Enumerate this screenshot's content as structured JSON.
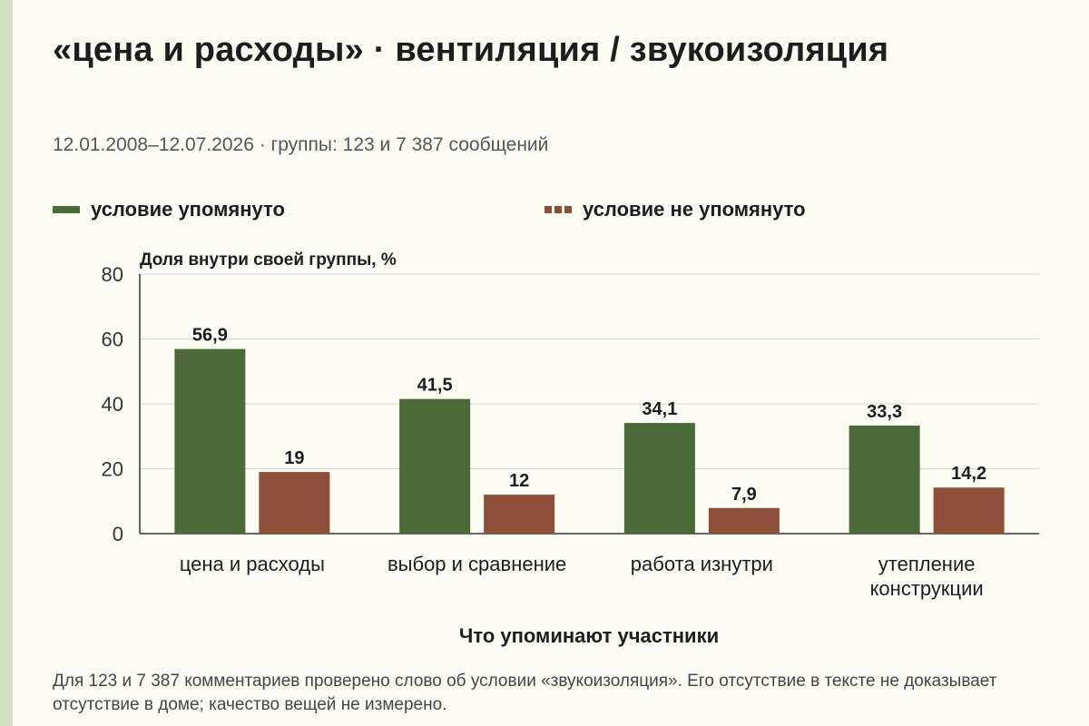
{
  "title": "«цена и расходы» · вентиляция / звукоизоляция",
  "subtitle": "12.01.2008–12.07.2026 · группы: 123 и 7 387 сообщений",
  "footnote": "Для 123 и 7 387 комментариев проверено слово об условии «звукоизоляция». Его отсутствие в тексте не доказывает отсутствие в доме; качество вещей не измерено.",
  "colors": {
    "mentioned": "#4a6a3a",
    "not_mentioned": "#8e4f3a",
    "grid": "#d6d6d6",
    "axis": "#333333"
  },
  "chart_data": {
    "type": "bar",
    "title": "«цена и расходы» · вентиляция / звукоизоляция",
    "ylabel": "Доля внутри своей группы, %",
    "xlabel": "Что упоминают участники",
    "ylim": [
      0,
      80
    ],
    "yticks": [
      0,
      20,
      40,
      60,
      80
    ],
    "grid": true,
    "legend_position": "top",
    "categories": [
      [
        "цена и расходы"
      ],
      [
        "выбор и сравнение"
      ],
      [
        "работа изнутри"
      ],
      [
        "утепление",
        "конструкции"
      ]
    ],
    "series": [
      {
        "name": "условие упомянуто",
        "values": [
          56.9,
          41.5,
          34.1,
          33.3
        ],
        "labels": [
          "56,9",
          "41,5",
          "34,1",
          "33,3"
        ]
      },
      {
        "name": "условие не упомянуто",
        "values": [
          19,
          12,
          7.9,
          14.2
        ],
        "labels": [
          "19",
          "12",
          "7,9",
          "14,2"
        ]
      }
    ]
  }
}
